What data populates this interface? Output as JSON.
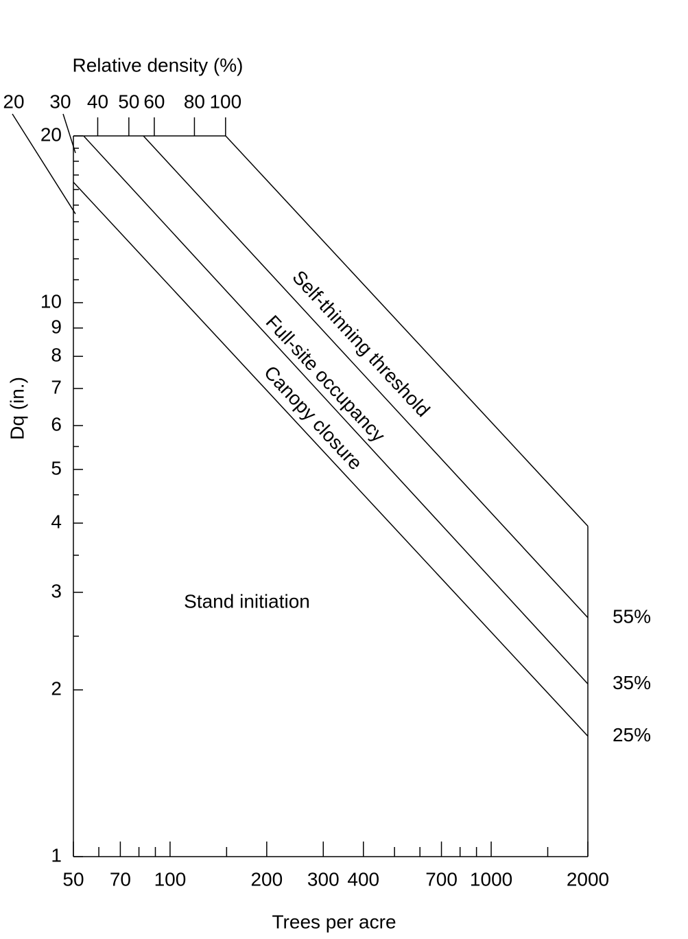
{
  "chart_data": {
    "type": "line",
    "x2label": "Relative density (%)",
    "ylabel": "Dq (in.)",
    "xlabel": "Trees per acre",
    "xscale": "log",
    "yscale": "log",
    "xlim": [
      50,
      2000
    ],
    "ylim": [
      1,
      20
    ],
    "xticks": [
      50,
      70,
      100,
      200,
      300,
      400,
      700,
      1000,
      2000
    ],
    "xminor": [
      60,
      80,
      90,
      150,
      500,
      600,
      800,
      900,
      1500
    ],
    "yticks": [
      1,
      2,
      3,
      4,
      5,
      6,
      7,
      8,
      9,
      10,
      20
    ],
    "yminor": [
      2.5,
      3.5,
      4.5,
      5.5,
      11,
      12,
      13,
      14,
      15,
      16,
      17,
      18,
      19
    ],
    "x2lim": [
      33.6,
      1342
    ],
    "x2ticks": [
      20,
      30,
      40,
      50,
      60,
      80,
      100
    ],
    "series": [
      {
        "name": "Self-thinning threshold",
        "color": "#000000",
        "x": [
          149,
          2000
        ],
        "values": [
          20,
          3.95
        ]
      },
      {
        "name": "Full-site occupancy",
        "end_label": "55%",
        "color": "#000000",
        "x": [
          82.6,
          2000
        ],
        "values": [
          20,
          2.7
        ]
      },
      {
        "name": "Canopy closure",
        "end_label": "35%",
        "color": "#000000",
        "x": [
          53.8,
          2000
        ],
        "values": [
          20,
          2.05
        ]
      },
      {
        "end_label": "25%",
        "color": "#000000",
        "x": [
          50,
          2000
        ],
        "values": [
          16.5,
          1.65
        ]
      }
    ],
    "annotations": [
      "Stand initiation"
    ]
  }
}
